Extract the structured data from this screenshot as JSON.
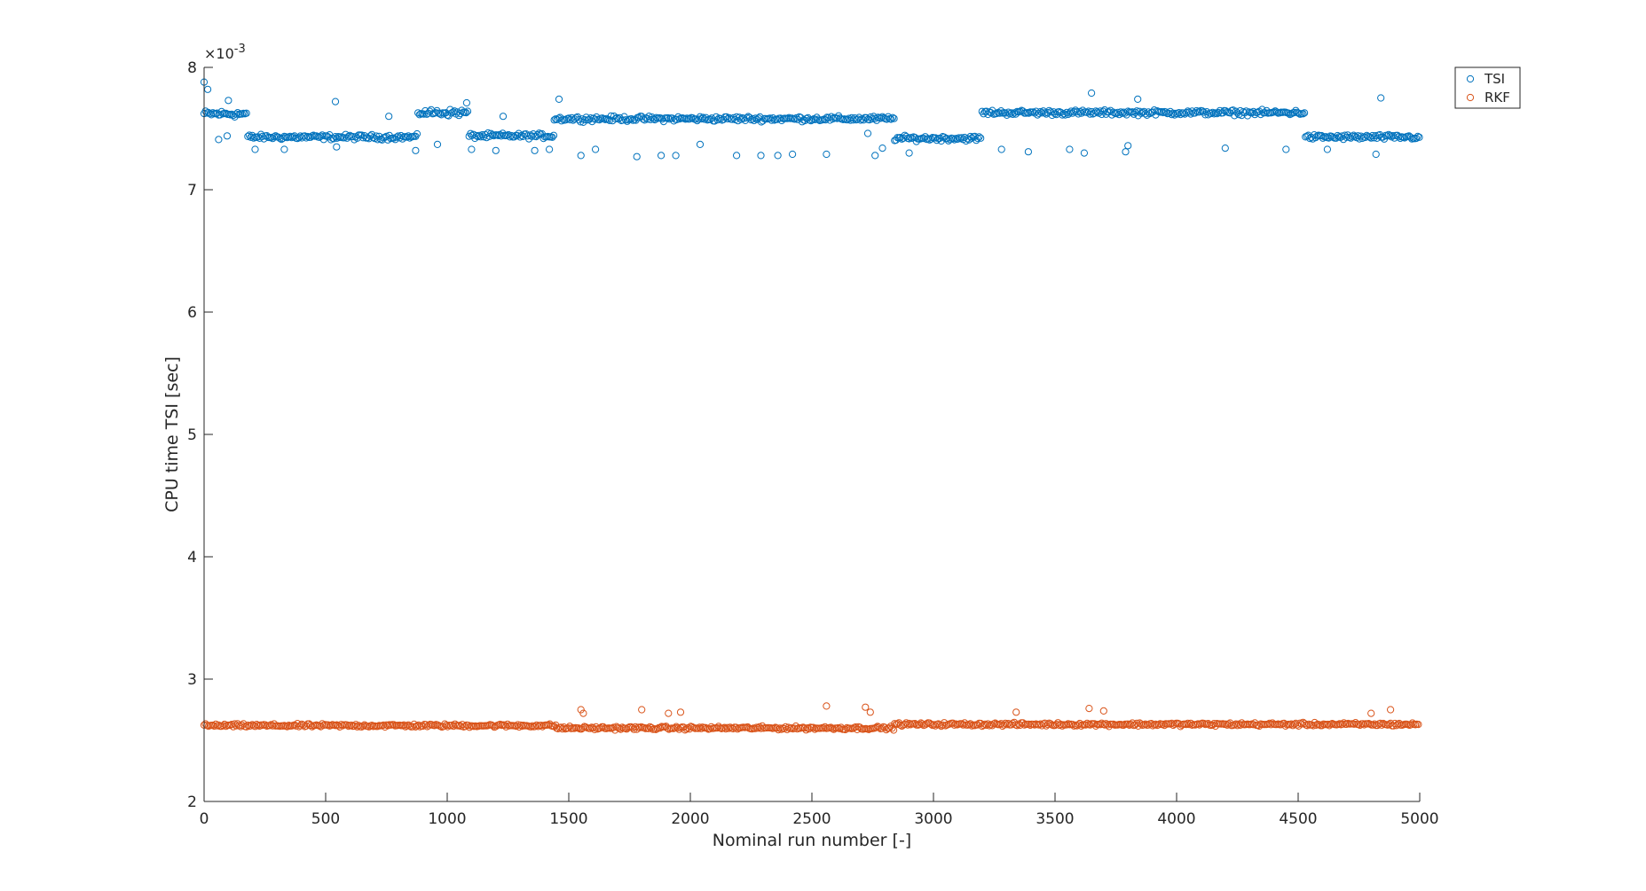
{
  "chart_data": {
    "type": "scatter",
    "title": "",
    "xlabel": "Nominal run number [-]",
    "ylabel": "CPU time TSI [sec]",
    "y_exponent_label": "×10",
    "y_exponent_power": "-3",
    "xlim": [
      0,
      5000
    ],
    "ylim": [
      2,
      8
    ],
    "xticks": [
      0,
      500,
      1000,
      1500,
      2000,
      2500,
      3000,
      3500,
      4000,
      4500,
      5000
    ],
    "yticks": [
      2,
      3,
      4,
      5,
      6,
      7,
      8
    ],
    "grid": false,
    "legend_position": "top-right",
    "marker": "open-circle",
    "points_note_sampled": true,
    "series": [
      {
        "name": "TSI",
        "color": "#0072BD",
        "segments": [
          {
            "x_start": 0,
            "x_end": 180,
            "level": 7.62,
            "spread": 0.04
          },
          {
            "x_start": 180,
            "x_end": 880,
            "level": 7.43,
            "spread": 0.03
          },
          {
            "x_start": 880,
            "x_end": 1090,
            "level": 7.63,
            "spread": 0.04
          },
          {
            "x_start": 1090,
            "x_end": 1440,
            "level": 7.44,
            "spread": 0.03
          },
          {
            "x_start": 1440,
            "x_end": 2840,
            "level": 7.58,
            "spread": 0.03
          },
          {
            "x_start": 2840,
            "x_end": 3200,
            "level": 7.42,
            "spread": 0.03
          },
          {
            "x_start": 3200,
            "x_end": 4530,
            "level": 7.63,
            "spread": 0.03
          },
          {
            "x_start": 4530,
            "x_end": 5000,
            "level": 7.43,
            "spread": 0.03
          }
        ],
        "outliers": [
          [
            0,
            7.88
          ],
          [
            15,
            7.82
          ],
          [
            60,
            7.41
          ],
          [
            95,
            7.44
          ],
          [
            100,
            7.73
          ],
          [
            210,
            7.33
          ],
          [
            330,
            7.33
          ],
          [
            540,
            7.72
          ],
          [
            545,
            7.35
          ],
          [
            760,
            7.6
          ],
          [
            870,
            7.32
          ],
          [
            960,
            7.37
          ],
          [
            1080,
            7.71
          ],
          [
            1100,
            7.33
          ],
          [
            1200,
            7.32
          ],
          [
            1230,
            7.6
          ],
          [
            1360,
            7.32
          ],
          [
            1420,
            7.33
          ],
          [
            1460,
            7.74
          ],
          [
            1550,
            7.28
          ],
          [
            1610,
            7.33
          ],
          [
            1780,
            7.27
          ],
          [
            1880,
            7.28
          ],
          [
            1940,
            7.28
          ],
          [
            2040,
            7.37
          ],
          [
            2190,
            7.28
          ],
          [
            2290,
            7.28
          ],
          [
            2360,
            7.28
          ],
          [
            2420,
            7.29
          ],
          [
            2560,
            7.29
          ],
          [
            2730,
            7.46
          ],
          [
            2760,
            7.28
          ],
          [
            2790,
            7.34
          ],
          [
            2900,
            7.3
          ],
          [
            3280,
            7.33
          ],
          [
            3390,
            7.31
          ],
          [
            3560,
            7.33
          ],
          [
            3620,
            7.3
          ],
          [
            3650,
            7.79
          ],
          [
            3790,
            7.31
          ],
          [
            3800,
            7.36
          ],
          [
            3840,
            7.74
          ],
          [
            4200,
            7.34
          ],
          [
            4450,
            7.33
          ],
          [
            4620,
            7.33
          ],
          [
            4820,
            7.29
          ],
          [
            4840,
            7.75
          ]
        ]
      },
      {
        "name": "RKF",
        "color": "#D95319",
        "segments": [
          {
            "x_start": 0,
            "x_end": 1450,
            "level": 2.62,
            "spread": 0.02
          },
          {
            "x_start": 1450,
            "x_end": 2840,
            "level": 2.6,
            "spread": 0.02
          },
          {
            "x_start": 2840,
            "x_end": 5000,
            "level": 2.63,
            "spread": 0.02
          }
        ],
        "outliers": [
          [
            1550,
            2.75
          ],
          [
            1560,
            2.72
          ],
          [
            1800,
            2.75
          ],
          [
            1910,
            2.72
          ],
          [
            1960,
            2.73
          ],
          [
            2560,
            2.78
          ],
          [
            2720,
            2.77
          ],
          [
            2740,
            2.73
          ],
          [
            3340,
            2.73
          ],
          [
            3640,
            2.76
          ],
          [
            3700,
            2.74
          ],
          [
            4880,
            2.75
          ],
          [
            4800,
            2.72
          ]
        ]
      }
    ]
  }
}
